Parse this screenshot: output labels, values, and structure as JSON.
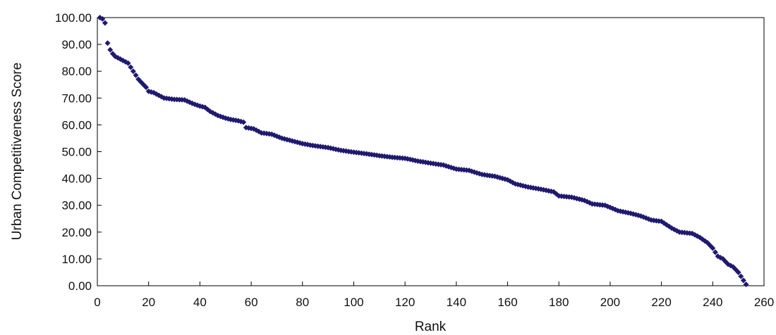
{
  "chart_data": {
    "type": "scatter",
    "title": "",
    "xlabel": "Rank",
    "ylabel": "Urban Competitiveness Score",
    "xlim": [
      0,
      260
    ],
    "ylim": [
      0,
      100
    ],
    "x_ticks": [
      "0",
      "20",
      "40",
      "60",
      "80",
      "100",
      "120",
      "140",
      "160",
      "180",
      "200",
      "220",
      "240",
      "260"
    ],
    "y_ticks": [
      "0.00",
      "10.00",
      "20.00",
      "30.00",
      "40.00",
      "50.00",
      "60.00",
      "70.00",
      "80.00",
      "90.00",
      "100.00"
    ],
    "grid": false,
    "legend": "none",
    "marker": "diamond",
    "marker_color": "#1f1a6e",
    "anchors": [
      [
        1,
        100.0
      ],
      [
        2,
        99.5
      ],
      [
        3,
        98.0
      ],
      [
        4,
        90.5
      ],
      [
        5,
        88.0
      ],
      [
        6,
        86.5
      ],
      [
        7,
        85.5
      ],
      [
        8,
        85.0
      ],
      [
        10,
        84.0
      ],
      [
        12,
        83.0
      ],
      [
        14,
        80.0
      ],
      [
        16,
        77.0
      ],
      [
        18,
        75.0
      ],
      [
        19,
        74.0
      ],
      [
        20,
        72.5
      ],
      [
        22,
        72.0
      ],
      [
        24,
        71.0
      ],
      [
        26,
        70.0
      ],
      [
        30,
        69.5
      ],
      [
        34,
        69.3
      ],
      [
        37,
        68.0
      ],
      [
        40,
        67.0
      ],
      [
        42,
        66.5
      ],
      [
        44,
        65.0
      ],
      [
        47,
        63.5
      ],
      [
        50,
        62.5
      ],
      [
        52,
        62.0
      ],
      [
        55,
        61.5
      ],
      [
        57,
        61.0
      ],
      [
        58,
        59.0
      ],
      [
        61,
        58.5
      ],
      [
        64,
        57.0
      ],
      [
        68,
        56.5
      ],
      [
        72,
        55.0
      ],
      [
        76,
        54.0
      ],
      [
        80,
        53.0
      ],
      [
        84,
        52.3
      ],
      [
        90,
        51.5
      ],
      [
        95,
        50.5
      ],
      [
        100,
        49.8
      ],
      [
        105,
        49.2
      ],
      [
        110,
        48.5
      ],
      [
        115,
        47.9
      ],
      [
        120,
        47.5
      ],
      [
        125,
        46.5
      ],
      [
        130,
        45.7
      ],
      [
        135,
        45.0
      ],
      [
        140,
        43.5
      ],
      [
        145,
        43.0
      ],
      [
        150,
        41.5
      ],
      [
        155,
        40.8
      ],
      [
        160,
        39.5
      ],
      [
        163,
        38.0
      ],
      [
        168,
        36.8
      ],
      [
        173,
        36.0
      ],
      [
        178,
        35.0
      ],
      [
        180,
        33.5
      ],
      [
        185,
        33.0
      ],
      [
        190,
        31.8
      ],
      [
        193,
        30.5
      ],
      [
        198,
        30.0
      ],
      [
        203,
        28.0
      ],
      [
        208,
        27.0
      ],
      [
        212,
        26.0
      ],
      [
        216,
        24.5
      ],
      [
        220,
        24.0
      ],
      [
        224,
        21.5
      ],
      [
        227,
        20.0
      ],
      [
        232,
        19.5
      ],
      [
        235,
        18.0
      ],
      [
        238,
        16.0
      ],
      [
        240,
        14.0
      ],
      [
        242,
        11.0
      ],
      [
        244,
        10.0
      ],
      [
        246,
        8.0
      ],
      [
        248,
        7.0
      ],
      [
        250,
        5.0
      ],
      [
        252,
        2.0
      ],
      [
        253,
        0.5
      ]
    ]
  }
}
